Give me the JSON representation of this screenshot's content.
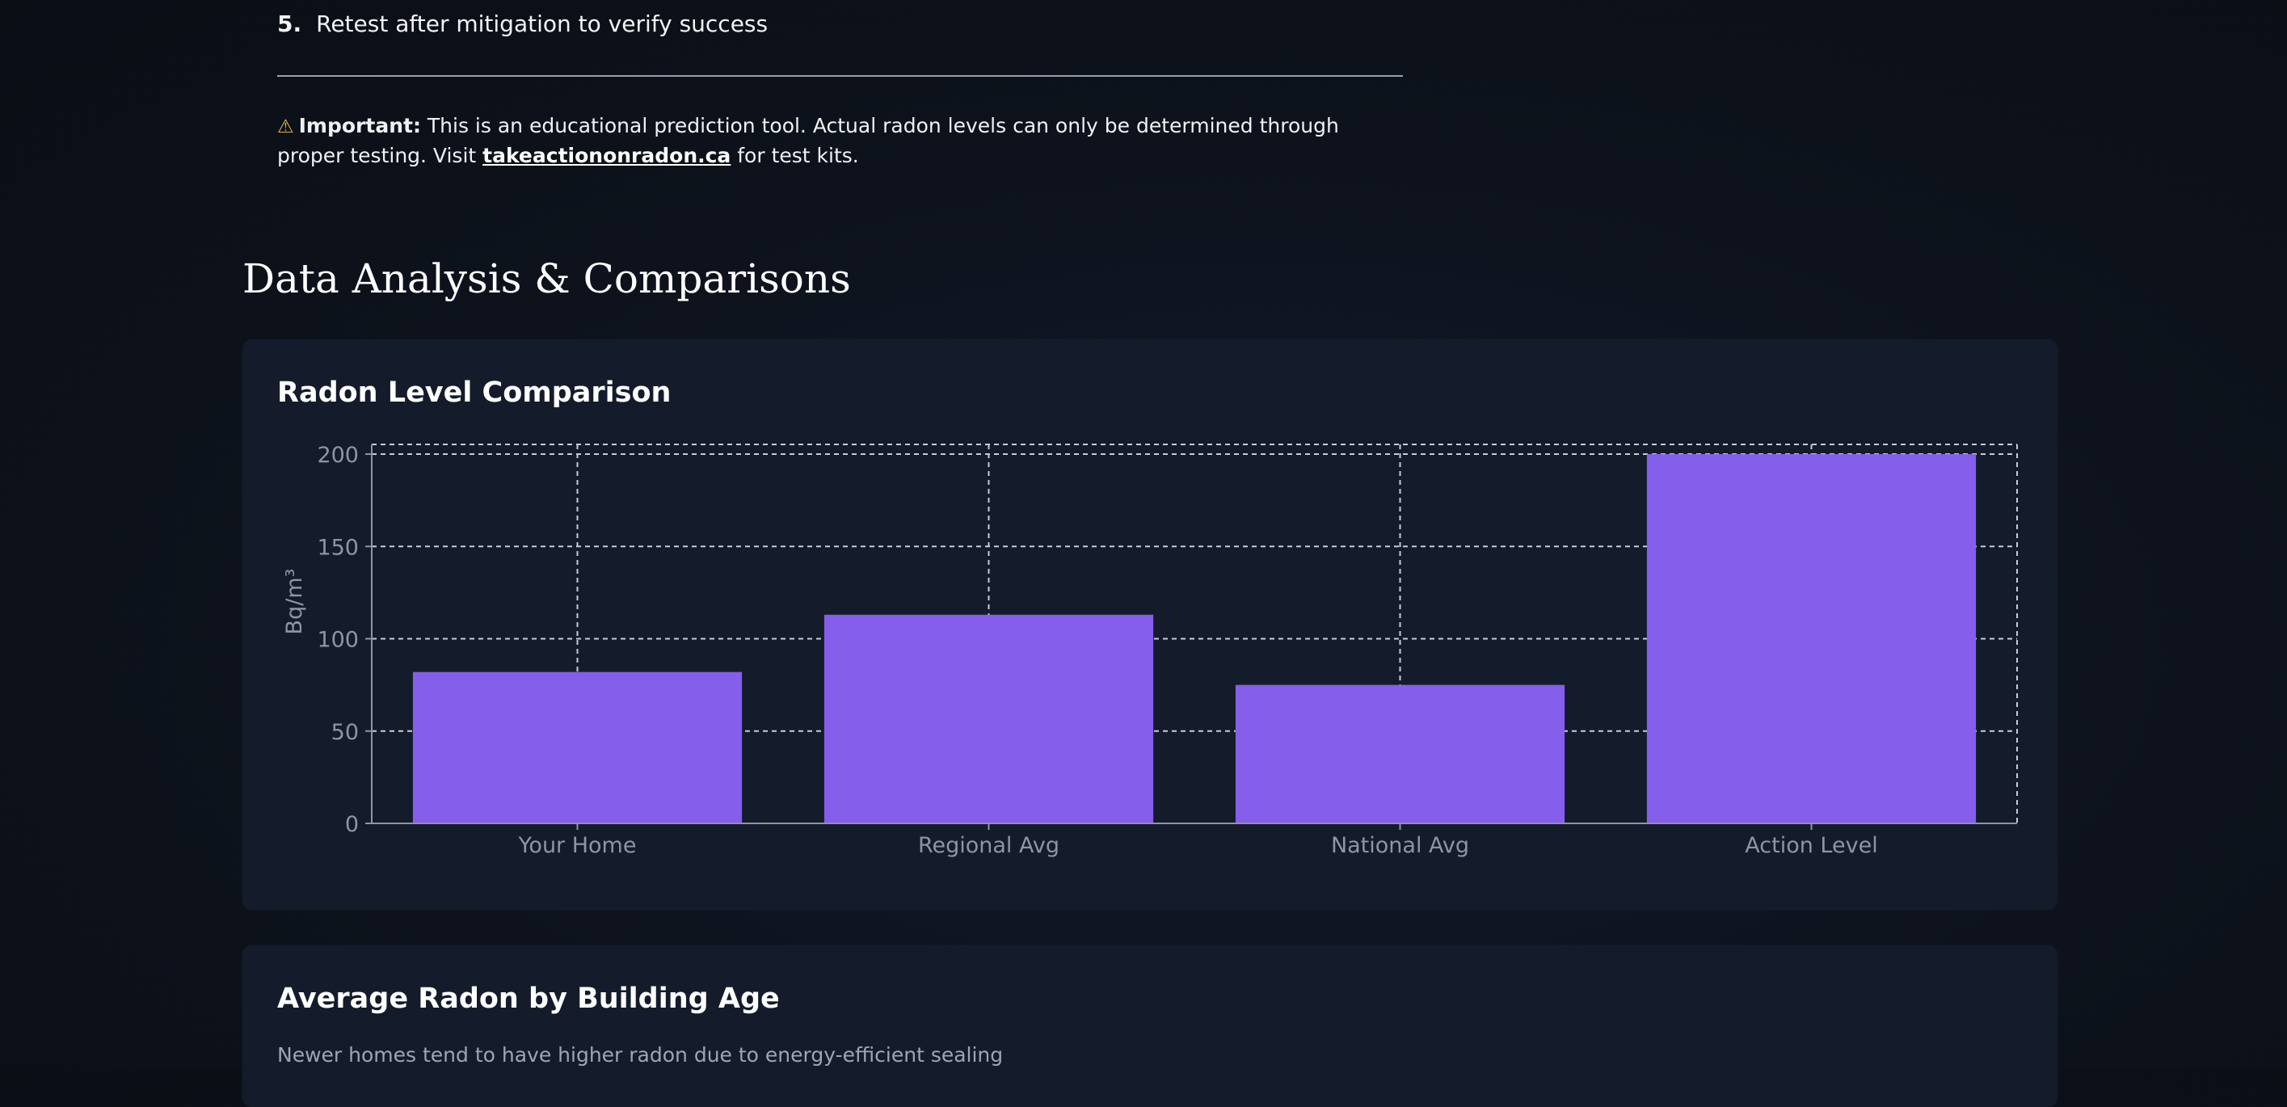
{
  "steps": {
    "last_number": "5.",
    "last_text": "Retest after mitigation to verify success"
  },
  "notice": {
    "icon": "warning-icon",
    "label": "Important:",
    "text_before_link": " This is an educational prediction tool. Actual radon levels can only be determined through proper testing. Visit ",
    "link_text": "takeactiononradon.ca",
    "text_after_link": " for test kits."
  },
  "section": {
    "title": "Data Analysis & Comparisons"
  },
  "cards": {
    "comparison": {
      "title": "Radon Level Comparison"
    },
    "building_age": {
      "title": "Average Radon by Building Age",
      "subtitle": "Newer homes tend to have higher radon due to energy-efficient sealing"
    }
  },
  "colors": {
    "bar": "#855eec",
    "accent_warning": "#e8b04c",
    "grid": "#c9ccd4",
    "tick_text": "#8f95a3"
  },
  "chart_data": {
    "type": "bar",
    "categories": [
      "Your Home",
      "Regional Avg",
      "National Avg",
      "Action Level"
    ],
    "values": [
      82,
      113,
      75,
      200
    ],
    "title": "Radon Level Comparison",
    "xlabel": "",
    "ylabel": "Bq/m³",
    "ylim": [
      0,
      200
    ],
    "yticks": [
      0,
      50,
      100,
      150,
      200
    ],
    "grid": true,
    "legend": "none"
  }
}
